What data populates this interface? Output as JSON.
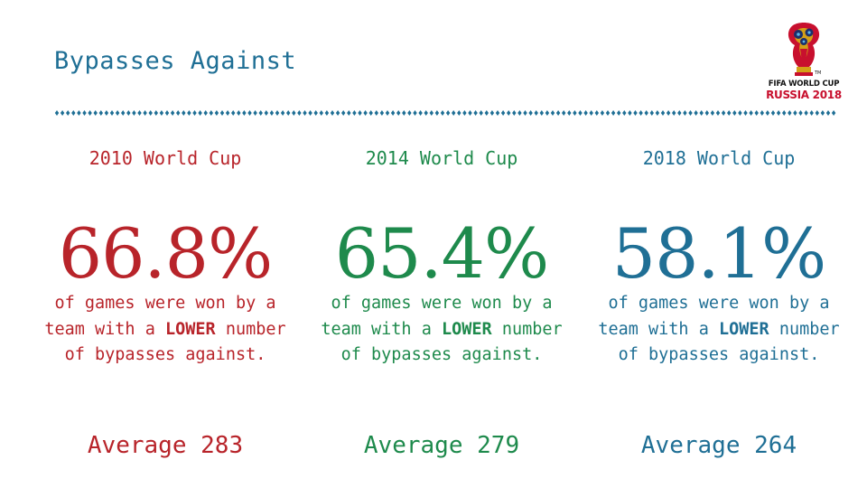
{
  "slide": {
    "title": "Bypasses Against"
  },
  "logo": {
    "line1": "FIFA WORLD CUP",
    "line2": "RUSSIA 2018",
    "tm": "TM"
  },
  "colors": {
    "title": "#1f6f95",
    "red": "#b8242a",
    "green": "#1e8a4c",
    "blue": "#1f6f95",
    "divider": "#1f6f95"
  },
  "columns": [
    {
      "heading": "2010 World Cup",
      "percentage": "66.8%",
      "desc_pre": "of games were won by a team with a ",
      "desc_bold": "LOWER",
      "desc_post": " number of bypasses against.",
      "average": "Average 283"
    },
    {
      "heading": "2014 World Cup",
      "percentage": "65.4%",
      "desc_pre": "of games were won by a team with a ",
      "desc_bold": "LOWER",
      "desc_post": " number of bypasses against.",
      "average": "Average 279"
    },
    {
      "heading": "2018 World Cup",
      "percentage": "58.1%",
      "desc_pre": "of games were won by a team with a ",
      "desc_bold": "LOWER",
      "desc_post": " number of bypasses against.",
      "average": "Average 264"
    }
  ]
}
